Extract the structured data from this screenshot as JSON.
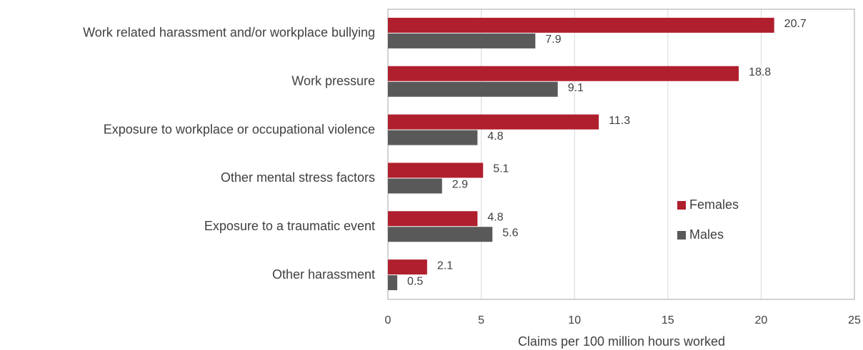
{
  "chart_data": {
    "type": "hbar",
    "xlabel": "Claims per 100 million hours worked",
    "categories": [
      "Work related harassment and/or workplace bullying",
      "Work pressure",
      "Exposure to workplace or occupational violence",
      "Other mental stress factors",
      "Exposure to a traumatic event",
      "Other harassment"
    ],
    "series": [
      {
        "name": "Females",
        "color": "#b01f2e",
        "values": [
          20.7,
          18.8,
          11.3,
          5.1,
          4.8,
          2.1
        ]
      },
      {
        "name": "Males",
        "color": "#595959",
        "values": [
          7.9,
          9.1,
          4.8,
          2.9,
          5.6,
          0.5
        ]
      }
    ],
    "xlim": [
      0,
      25
    ],
    "xticks": [
      0,
      5,
      10,
      15,
      20,
      25
    ],
    "grid": true,
    "legend": "center-right"
  }
}
